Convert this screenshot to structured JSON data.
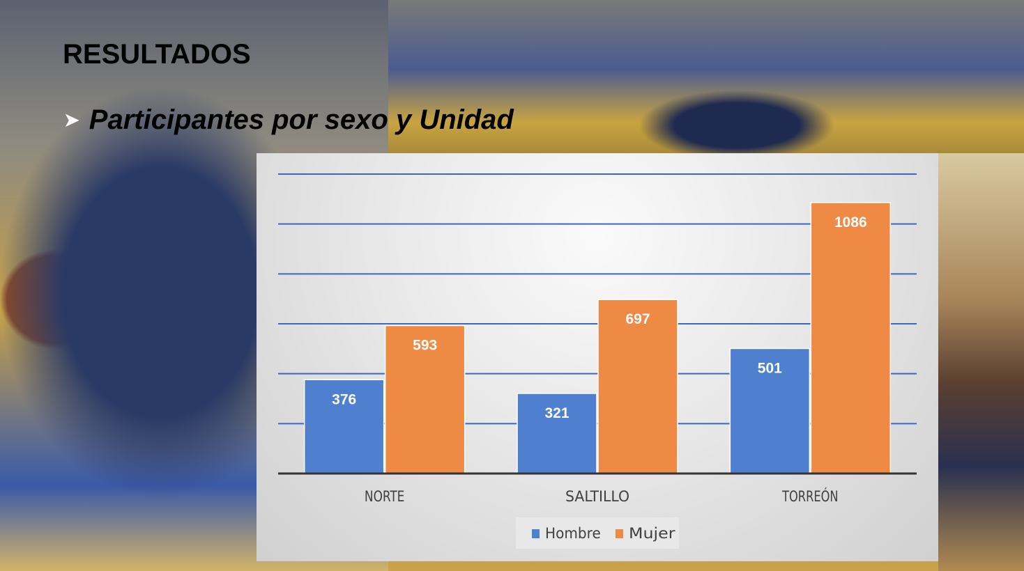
{
  "slide": {
    "title": "RESULTADOS",
    "bullet": "Participantes por sexo y Unidad",
    "bullet_icon": "arrow-bullet-icon"
  },
  "chart_data": {
    "type": "bar",
    "title": "",
    "xlabel": "",
    "ylabel": "",
    "categories": [
      "NORTE",
      "SALTILLO",
      "TORREÓN"
    ],
    "series": [
      {
        "name": "Hombre",
        "values": [
          376,
          321,
          501
        ],
        "color": "#4f7fcf"
      },
      {
        "name": "Mujer",
        "values": [
          593,
          697,
          1086
        ],
        "color": "#ef8a45"
      }
    ],
    "ylim": [
      0,
      1200
    ],
    "ytick_step": 200,
    "grid": true,
    "gridline_color": "#3a66c4",
    "data_labels": true,
    "legend_placement": "bottom"
  }
}
